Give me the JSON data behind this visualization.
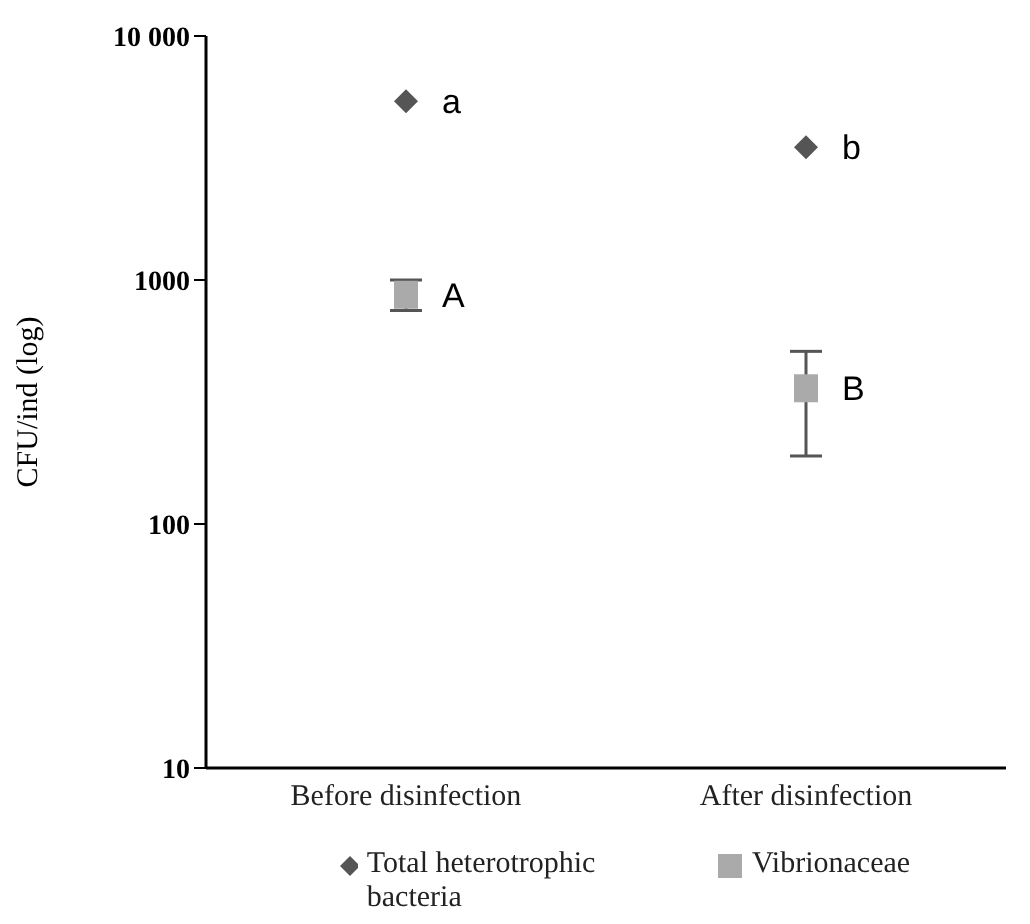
{
  "chart_data": {
    "type": "scatter",
    "ylabel": "CFU/ind (log)",
    "categories": [
      "Before disinfection",
      "After disinfection"
    ],
    "series": [
      {
        "name": "Total heterotrophic bacteria",
        "color": "#555555",
        "marker": "diamond",
        "values": [
          5400,
          3500
        ]
      },
      {
        "name": "Vibrionaceae",
        "color": "#aaaaaa",
        "marker": "square",
        "values": [
          870,
          360
        ],
        "errors": [
          [
            750,
            1000
          ],
          [
            190,
            510
          ]
        ]
      }
    ],
    "log": true,
    "ylim": [
      10,
      10000
    ],
    "yticks": [
      10,
      100,
      1000,
      {
        "value": 10000,
        "label": "10 000"
      }
    ],
    "grid": false,
    "legend": "bottom",
    "annotations": [
      {
        "text": "a",
        "x": "Before disinfection",
        "y": 5400
      },
      {
        "text": "b",
        "x": "After disinfection",
        "y": 3500
      },
      {
        "text": "A",
        "x": "Before disinfection",
        "y": 870
      },
      {
        "text": "B",
        "x": "After disinfection",
        "y": 360
      }
    ]
  }
}
